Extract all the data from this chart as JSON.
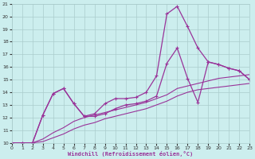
{
  "xlabel": "Windchill (Refroidissement éolien,°C)",
  "bg_color": "#cceeee",
  "grid_color": "#aacccc",
  "line_color": "#993399",
  "xlim": [
    0,
    23
  ],
  "ylim": [
    10,
    21
  ],
  "xticks": [
    0,
    1,
    2,
    3,
    4,
    5,
    6,
    7,
    8,
    9,
    10,
    11,
    12,
    13,
    14,
    15,
    16,
    17,
    18,
    19,
    20,
    21,
    22,
    23
  ],
  "yticks": [
    10,
    11,
    12,
    13,
    14,
    15,
    16,
    17,
    18,
    19,
    20,
    21
  ],
  "series": [
    {
      "x": [
        0,
        1,
        2,
        3,
        4,
        5,
        6,
        7,
        8,
        9,
        10,
        11,
        12,
        13,
        14,
        15,
        16,
        17,
        18,
        19,
        20,
        21,
        22,
        23
      ],
      "y": [
        10,
        10,
        10,
        12.2,
        13.9,
        14.3,
        13.1,
        12.1,
        12.3,
        13.1,
        13.5,
        13.5,
        13.6,
        14.0,
        15.3,
        20.2,
        20.8,
        19.2,
        17.5,
        16.4,
        16.2,
        15.9,
        15.7,
        15.0
      ],
      "marker": "+",
      "lw": 0.9
    },
    {
      "x": [
        0,
        1,
        2,
        3,
        4,
        5,
        6,
        7,
        8,
        9,
        10,
        11,
        12,
        13,
        14,
        15,
        16,
        17,
        18,
        19,
        20,
        21,
        22,
        23
      ],
      "y": [
        10,
        10,
        10,
        12.2,
        13.9,
        14.3,
        13.1,
        12.1,
        12.1,
        12.3,
        12.7,
        13.0,
        13.1,
        13.3,
        13.7,
        16.3,
        17.5,
        15.1,
        13.2,
        16.4,
        16.2,
        15.9,
        15.7,
        15.0
      ],
      "marker": "+",
      "lw": 0.9
    },
    {
      "x": [
        0,
        1,
        2,
        3,
        4,
        5,
        6,
        7,
        8,
        9,
        10,
        11,
        12,
        13,
        14,
        15,
        16,
        17,
        18,
        19,
        20,
        21,
        22,
        23
      ],
      "y": [
        10,
        10,
        10,
        10.3,
        10.8,
        11.2,
        11.7,
        12.0,
        12.2,
        12.4,
        12.6,
        12.8,
        13.0,
        13.2,
        13.5,
        13.8,
        14.3,
        14.5,
        14.7,
        14.9,
        15.1,
        15.2,
        15.3,
        15.4
      ],
      "marker": null,
      "lw": 0.8
    },
    {
      "x": [
        0,
        1,
        2,
        3,
        4,
        5,
        6,
        7,
        8,
        9,
        10,
        11,
        12,
        13,
        14,
        15,
        16,
        17,
        18,
        19,
        20,
        21,
        22,
        23
      ],
      "y": [
        10,
        10,
        10,
        10.1,
        10.4,
        10.7,
        11.1,
        11.4,
        11.6,
        11.9,
        12.1,
        12.3,
        12.5,
        12.7,
        13.0,
        13.3,
        13.7,
        14.0,
        14.2,
        14.3,
        14.4,
        14.5,
        14.6,
        14.7
      ],
      "marker": null,
      "lw": 0.8
    }
  ]
}
